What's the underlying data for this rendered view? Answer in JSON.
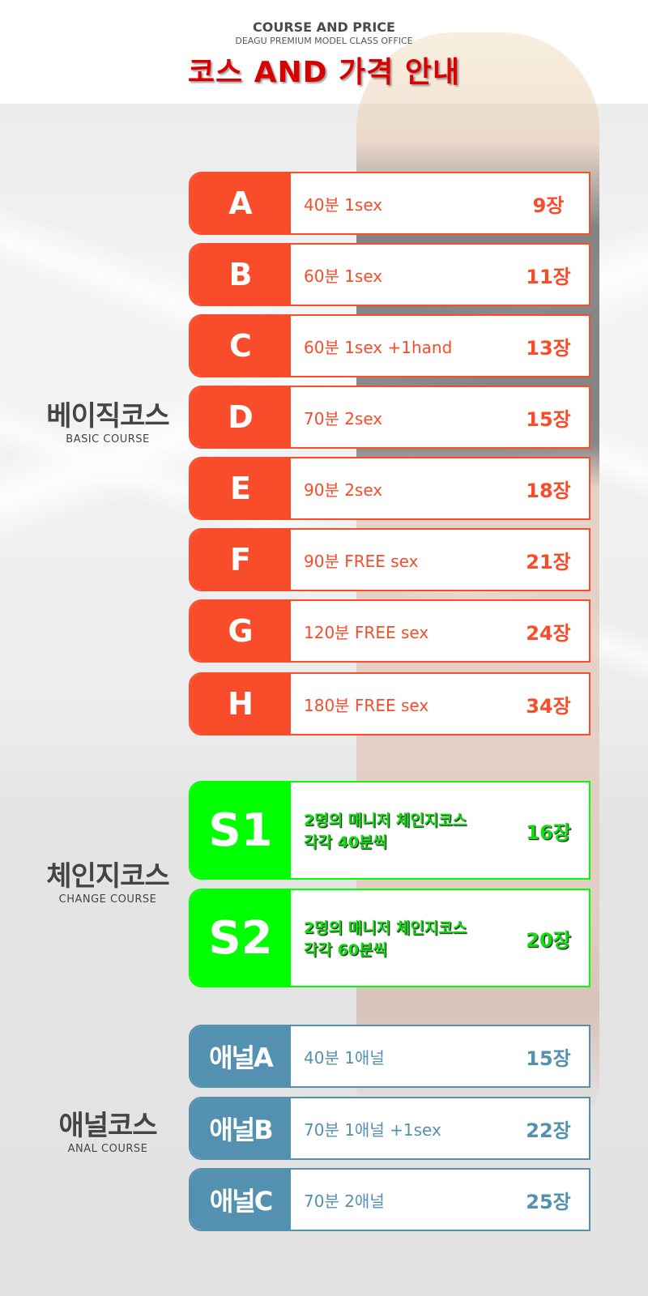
{
  "header": {
    "subtitle_en": "COURSE AND PRICE",
    "office": "DEAGU PREMIUM MODEL CLASS OFFICE",
    "title": "코스 AND 가격 안내"
  },
  "colors": {
    "basic": "#f84c2a",
    "change": "#00ff00",
    "anal": "#5490b0",
    "title": "#d90000"
  },
  "sections": [
    {
      "ko": "베이직코스",
      "en": "BASIC COURSE",
      "type": "basic",
      "items": [
        {
          "code": "A",
          "desc": "40분 1sex",
          "price": "9장"
        },
        {
          "code": "B",
          "desc": "60분 1sex",
          "price": "11장"
        },
        {
          "code": "C",
          "desc": "60분 1sex +1hand",
          "price": "13장"
        },
        {
          "code": "D",
          "desc": "70분 2sex",
          "price": "15장"
        },
        {
          "code": "E",
          "desc": "90분 2sex",
          "price": "18장"
        },
        {
          "code": "F",
          "desc": "90분 FREE sex",
          "price": "21장"
        },
        {
          "code": "G",
          "desc": "120분 FREE sex",
          "price": "24장"
        },
        {
          "code": "H",
          "desc": "180분 FREE sex",
          "price": "34장"
        }
      ]
    },
    {
      "ko": "체인지코스",
      "en": "CHANGE COURSE",
      "type": "change",
      "items": [
        {
          "code": "S1",
          "desc": "2명의 매니저 체인지코스",
          "desc2": "각각 40분씩",
          "price": "16장"
        },
        {
          "code": "S2",
          "desc": "2명의 매니저 체인지코스",
          "desc2": "각각 60분씩",
          "price": "20장"
        }
      ]
    },
    {
      "ko": "애널코스",
      "en": "ANAL COURSE",
      "type": "anal",
      "items": [
        {
          "code": "애널A",
          "desc": "40분 1애널",
          "price": "15장"
        },
        {
          "code": "애널B",
          "desc": "70분 1애널 +1sex",
          "price": "22장"
        },
        {
          "code": "애널C",
          "desc": "70분 2애널",
          "price": "25장"
        }
      ]
    }
  ]
}
